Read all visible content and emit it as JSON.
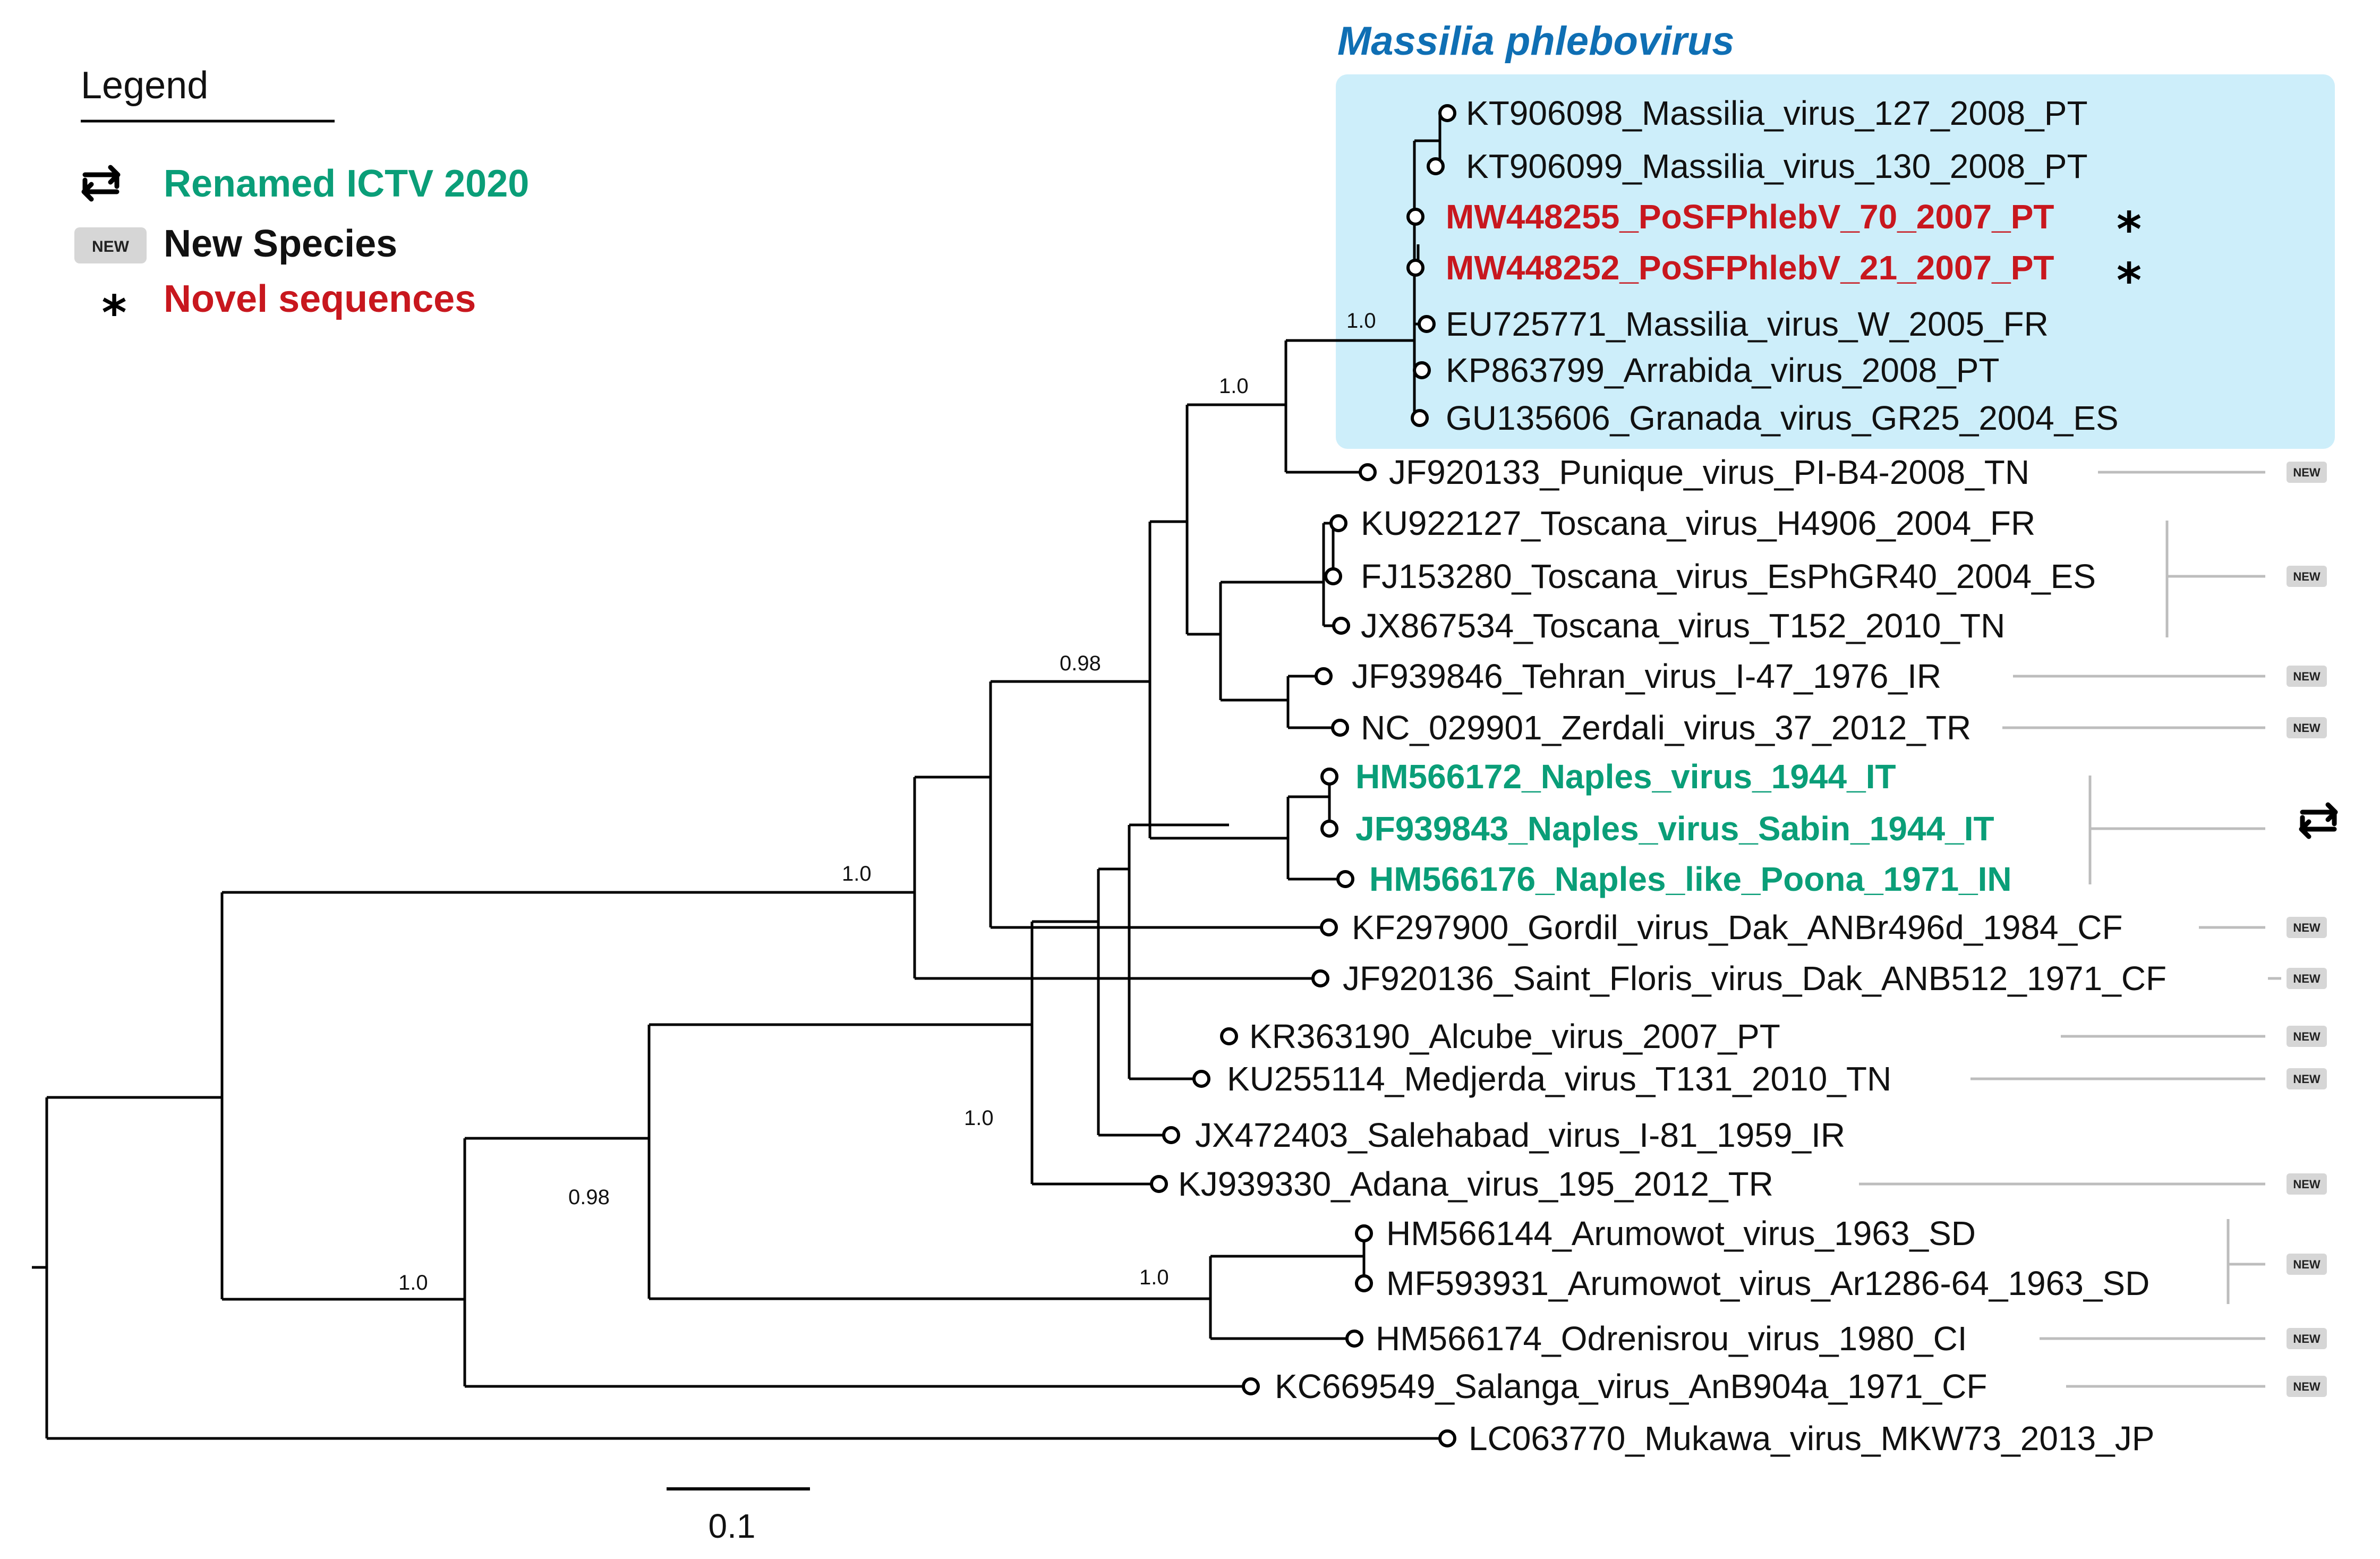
{
  "legend": {
    "title": "Legend",
    "items": [
      {
        "key": "renamed",
        "label": "Renamed ICTV 2020",
        "color": "#0a9e78",
        "icon": "swap-arrows-icon"
      },
      {
        "key": "new",
        "label": "New Species",
        "color": "#111111",
        "icon": "new-badge-icon",
        "badge": "NEW"
      },
      {
        "key": "novel",
        "label": "Novel sequences",
        "color": "#c8171e",
        "icon": "asterisk-icon"
      }
    ]
  },
  "clade": {
    "title": "Massilia phlebovirus",
    "title_color": "#0f6fb4",
    "box_color": "#cdeefa"
  },
  "tips": [
    {
      "label": "KT906098_Massilia_virus_127_2008_PT",
      "style": "normal"
    },
    {
      "label": "KT906099_Massilia_virus_130_2008_PT",
      "style": "normal"
    },
    {
      "label": "MW448255_PoSFPhlebV_70_2007_PT",
      "style": "novel",
      "marker": "*"
    },
    {
      "label": "MW448252_PoSFPhlebV_21_2007_PT",
      "style": "novel",
      "marker": "*"
    },
    {
      "label": "EU725771_Massilia_virus_W_2005_FR",
      "style": "normal"
    },
    {
      "label": "KP863799_Arrabida_virus_2008_PT",
      "style": "normal"
    },
    {
      "label": "GU135606_Granada_virus_GR25_2004_ES",
      "style": "normal"
    },
    {
      "label": "JF920133_Punique_virus_PI-B4-2008_TN",
      "style": "normal"
    },
    {
      "label": "KU922127_Toscana_virus_H4906_2004_FR",
      "style": "normal"
    },
    {
      "label": "FJ153280_Toscana_virus_EsPhGR40_2004_ES",
      "style": "normal"
    },
    {
      "label": "JX867534_Toscana_virus_T152_2010_TN",
      "style": "normal"
    },
    {
      "label": "JF939846_Tehran_virus_I-47_1976_IR",
      "style": "normal"
    },
    {
      "label": "NC_029901_Zerdali_virus_37_2012_TR",
      "style": "normal"
    },
    {
      "label": "HM566172_Naples_virus_1944_IT",
      "style": "renamed"
    },
    {
      "label": "JF939843_Naples_virus_Sabin_1944_IT",
      "style": "renamed"
    },
    {
      "label": "HM566176_Naples_like_Poona_1971_IN",
      "style": "renamed"
    },
    {
      "label": "KF297900_Gordil_virus_Dak_ANBr496d_1984_CF",
      "style": "normal"
    },
    {
      "label": "JF920136_Saint_Floris_virus_Dak_ANB512_1971_CF",
      "style": "normal"
    },
    {
      "label": "KR363190_Alcube_virus_2007_PT",
      "style": "normal"
    },
    {
      "label": "KU255114_Medjerda_virus_T131_2010_TN",
      "style": "normal"
    },
    {
      "label": "JX472403_Salehabad_virus_I-81_1959_IR",
      "style": "normal"
    },
    {
      "label": "KJ939330_Adana_virus_195_2012_TR",
      "style": "normal"
    },
    {
      "label": "HM566144_Arumowot_virus_1963_SD",
      "style": "normal"
    },
    {
      "label": "MF593931_Arumowot_virus_Ar1286-64_1963_SD",
      "style": "normal"
    },
    {
      "label": "HM566174_Odrenisrou_virus_1980_CI",
      "style": "normal"
    },
    {
      "label": "KC669549_Salanga_virus_AnB904a_1971_CF",
      "style": "normal"
    },
    {
      "label": "LC063770_Mukawa_virus_MKW73_2013_JP",
      "style": "normal"
    }
  ],
  "support_values": {
    "massilia": "1.0",
    "massilia_punique": "1.0",
    "naples_group": "0.98",
    "naples_gordil": "1.0",
    "salehabad_group": "1.0",
    "salehabad_arumowot": "0.98",
    "arumowot_group": "1.0",
    "salanga_group": "1.0"
  },
  "badges": {
    "new": "NEW",
    "renamed_icon": "swap-arrows-icon"
  },
  "scale_bar": {
    "label": "0.1",
    "length": 0.1
  },
  "colors": {
    "normal": "#111111",
    "novel": "#c8171e",
    "renamed": "#0a9e78",
    "badge_bg": "#d6d6d6"
  }
}
